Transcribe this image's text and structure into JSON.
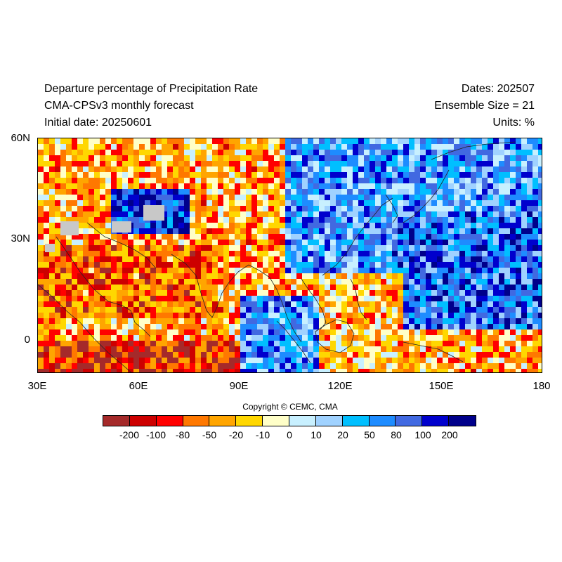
{
  "header": {
    "title": "Departure percentage of Precipitation Rate",
    "model": "CMA-CPSv3 monthly forecast",
    "initial_date": "Initial date: 20250601",
    "dates": "Dates: 202507",
    "ensemble": "Ensemble Size = 21",
    "units": "Units: %"
  },
  "map": {
    "lon_range": [
      30,
      180
    ],
    "lat_range": [
      -10,
      60
    ],
    "lat_labels": [
      "60N",
      "30N",
      "0"
    ],
    "lat_values": [
      60,
      30,
      0
    ],
    "lon_labels": [
      "30E",
      "60E",
      "90E",
      "120E",
      "150E",
      "180"
    ],
    "lon_values": [
      30,
      60,
      90,
      120,
      150,
      180
    ],
    "missing_color": "#c8c8c8"
  },
  "copyright": "Copyright © CEMC, CMA",
  "colorbar": {
    "colors": [
      "#a52a2a",
      "#cd0000",
      "#ff0000",
      "#ff7800",
      "#ffa500",
      "#ffd700",
      "#ffffc8",
      "#c8f0ff",
      "#a0d2ff",
      "#00bfff",
      "#1e8cff",
      "#4169e1",
      "#0000cd",
      "#00008b"
    ],
    "labels": [
      "-200",
      "-100",
      "-80",
      "-50",
      "-20",
      "-10",
      "0",
      "10",
      "20",
      "50",
      "80",
      "100",
      "200"
    ]
  }
}
